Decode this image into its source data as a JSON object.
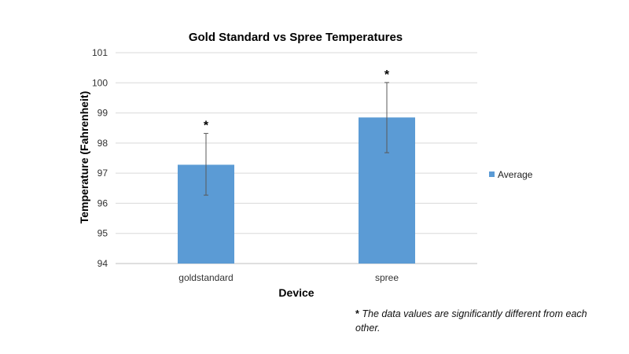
{
  "chart_data": {
    "type": "bar",
    "title": "Gold Standard vs Spree Temperatures",
    "xlabel": "Device",
    "ylabel": "Temperature (Fahrenheit)",
    "ylim": [
      94,
      101
    ],
    "yticks": [
      "94",
      "95",
      "96",
      "97",
      "98",
      "99",
      "100",
      "101"
    ],
    "grid": true,
    "legend_position": "right",
    "categories": [
      "goldstandard",
      "spree"
    ],
    "series": [
      {
        "name": "Average",
        "values": [
          97.28,
          98.85
        ],
        "error": [
          [
            96.27,
            98.32
          ],
          [
            97.68,
            100.01
          ]
        ],
        "significance_marks": [
          "*",
          "*"
        ]
      }
    ],
    "colors": {
      "bar": "#5b9bd5",
      "grid": "#d9d9d9",
      "error_bar": "#595959"
    }
  },
  "footnote": {
    "star": "*",
    "text": "The data values are significantly different from each other."
  }
}
